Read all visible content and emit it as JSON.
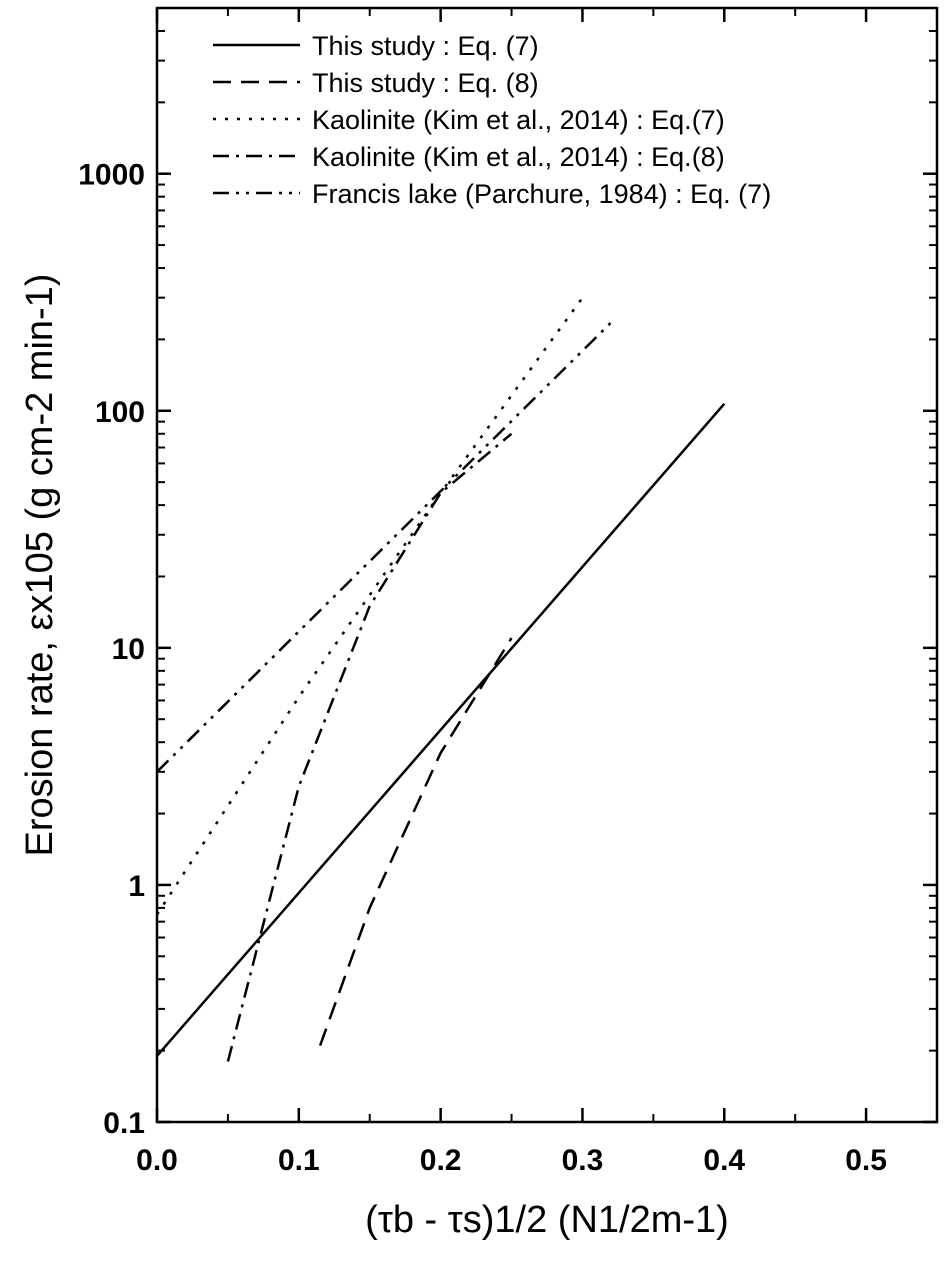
{
  "chart_data": {
    "type": "line",
    "xlabel": "(τb - τs)1/2 (N1/2m-1)",
    "ylabel": "Erosion rate, εx105 (g cm-2 min-1)",
    "x_axis": {
      "range": [
        0.0,
        0.55
      ],
      "ticks": [
        0.0,
        0.1,
        0.2,
        0.3,
        0.4,
        0.5
      ],
      "tick_labels": [
        "0.0",
        "0.1",
        "0.2",
        "0.3",
        "0.4",
        "0.5"
      ]
    },
    "y_axis": {
      "scale": "log",
      "range": [
        0.1,
        5000
      ],
      "ticks": [
        0.1,
        1,
        10,
        100,
        1000
      ],
      "tick_labels": [
        "0.1",
        "1",
        "10",
        "100",
        "1000"
      ]
    },
    "grid": false,
    "legend_position": "top-right",
    "series": [
      {
        "name": "This study : Eq. (7)",
        "style": "solid",
        "x": [
          0.0,
          0.4
        ],
        "y": [
          0.19,
          107
        ]
      },
      {
        "name": "This study : Eq. (8)",
        "style": "dashed",
        "x": [
          0.115,
          0.15,
          0.2,
          0.25
        ],
        "y": [
          0.21,
          0.8,
          3.6,
          11
        ]
      },
      {
        "name": "Kaolinite (Kim et al., 2014) : Eq.(7)",
        "style": "dotted",
        "x": [
          0.0,
          0.1,
          0.2,
          0.3
        ],
        "y": [
          0.75,
          6.2,
          45,
          300
        ]
      },
      {
        "name": "Kaolinite (Kim et al., 2014) : Eq.(8)",
        "style": "dashdot",
        "x": [
          0.05,
          0.1,
          0.15,
          0.2,
          0.25
        ],
        "y": [
          0.18,
          2.6,
          15,
          45,
          80
        ]
      },
      {
        "name": "Francis lake (Parchure, 1984) : Eq. (7)",
        "style": "dashdotdot",
        "x": [
          0.0,
          0.32
        ],
        "y": [
          3.0,
          235
        ]
      }
    ]
  }
}
